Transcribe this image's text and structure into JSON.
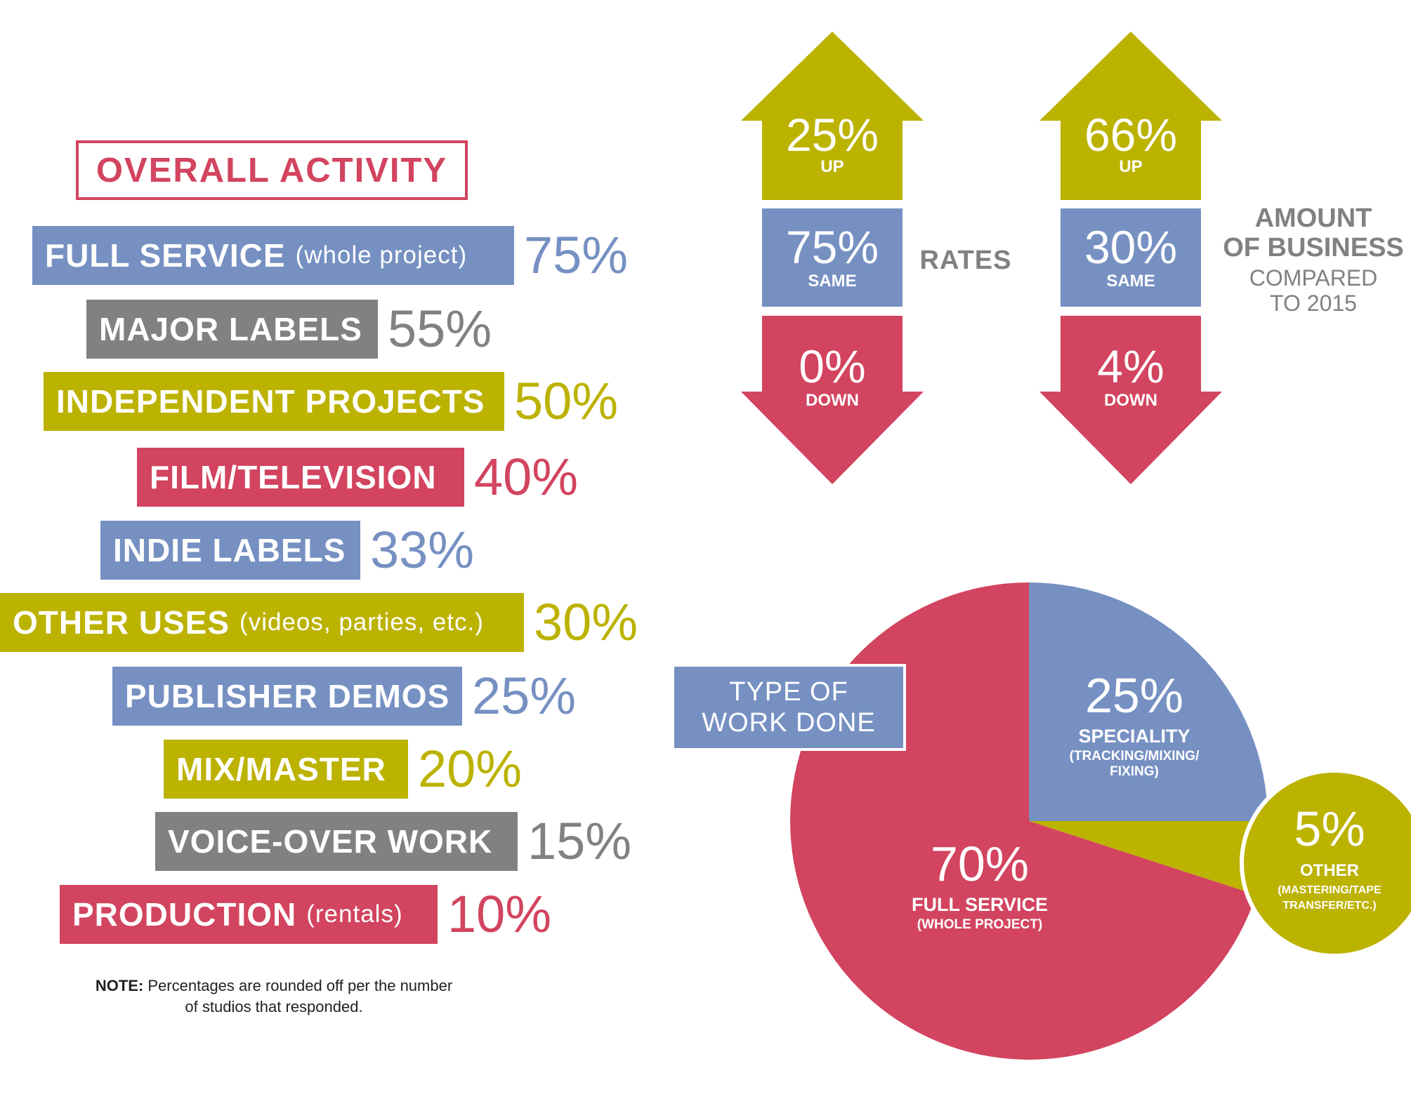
{
  "colors": {
    "blue": "#7690c2",
    "gray": "#838083",
    "olive": "#bcb200",
    "red": "#d2445f",
    "white": "#ffffff"
  },
  "overall_activity": {
    "title": "OVERALL ACTIVITY",
    "note_bold": "NOTE:",
    "note_line1": " Percentages are rounded off per the number",
    "note_line2": "of studios that responded."
  },
  "rates": {
    "label": "RATES"
  },
  "business": {
    "label_line1": "AMOUNT",
    "label_line2": "OF BUSINESS",
    "compared_line1": "COMPARED",
    "compared_line2": "TO 2015"
  },
  "work_done": {
    "label_line1": "TYPE OF",
    "label_line2": "WORK DONE"
  },
  "chart_data": [
    {
      "type": "bar",
      "title": "OVERALL ACTIVITY",
      "orientation": "horizontal",
      "categories": [
        "FULL SERVICE",
        "MAJOR LABELS",
        "INDEPENDENT PROJECTS",
        "FILM/TELEVISION",
        "INDIE LABELS",
        "OTHER USES",
        "PUBLISHER DEMOS",
        "MIX/MASTER",
        "VOICE-OVER WORK",
        "PRODUCTION"
      ],
      "subtitles": [
        "(whole project)",
        "",
        "",
        "",
        "",
        "(videos, parties, etc.)",
        "",
        "",
        "",
        "(rentals)"
      ],
      "values": [
        75,
        55,
        50,
        40,
        33,
        30,
        25,
        20,
        15,
        10
      ],
      "value_labels": [
        "75%",
        "55%",
        "50%",
        "40%",
        "33%",
        "30%",
        "25%",
        "20%",
        "15%",
        "10%"
      ],
      "colors": [
        "#7690c2",
        "#838083",
        "#bcb200",
        "#d2445f",
        "#7690c2",
        "#bcb200",
        "#7690c2",
        "#bcb200",
        "#838083",
        "#d2445f"
      ],
      "unit": "%"
    },
    {
      "type": "bar",
      "title": "RATES",
      "categories": [
        "UP",
        "SAME",
        "DOWN"
      ],
      "values": [
        25,
        75,
        0
      ],
      "value_labels": [
        "25%",
        "75%",
        "0%"
      ],
      "colors": [
        "#bcb200",
        "#7690c2",
        "#d2445f"
      ]
    },
    {
      "type": "bar",
      "title": "AMOUNT OF BUSINESS COMPARED TO 2015",
      "categories": [
        "UP",
        "SAME",
        "DOWN"
      ],
      "values": [
        66,
        30,
        4
      ],
      "value_labels": [
        "66%",
        "30%",
        "4%"
      ],
      "colors": [
        "#bcb200",
        "#7690c2",
        "#d2445f"
      ]
    },
    {
      "type": "pie",
      "title": "TYPE OF WORK DONE",
      "slices": [
        {
          "label": "SPECIALITY",
          "sub1": "(TRACKING/MIXING/",
          "sub2": "FIXING)",
          "value": 25,
          "value_label": "25%",
          "color": "#7690c2"
        },
        {
          "label": "OTHER",
          "sub1": "(MASTERING/TAPE",
          "sub2": "TRANSFER/ETC.)",
          "value": 5,
          "value_label": "5%",
          "color": "#bcb200"
        },
        {
          "label": "FULL SERVICE",
          "sub1": "(WHOLE PROJECT)",
          "sub2": "",
          "value": 70,
          "value_label": "70%",
          "color": "#d2445f"
        }
      ]
    }
  ]
}
